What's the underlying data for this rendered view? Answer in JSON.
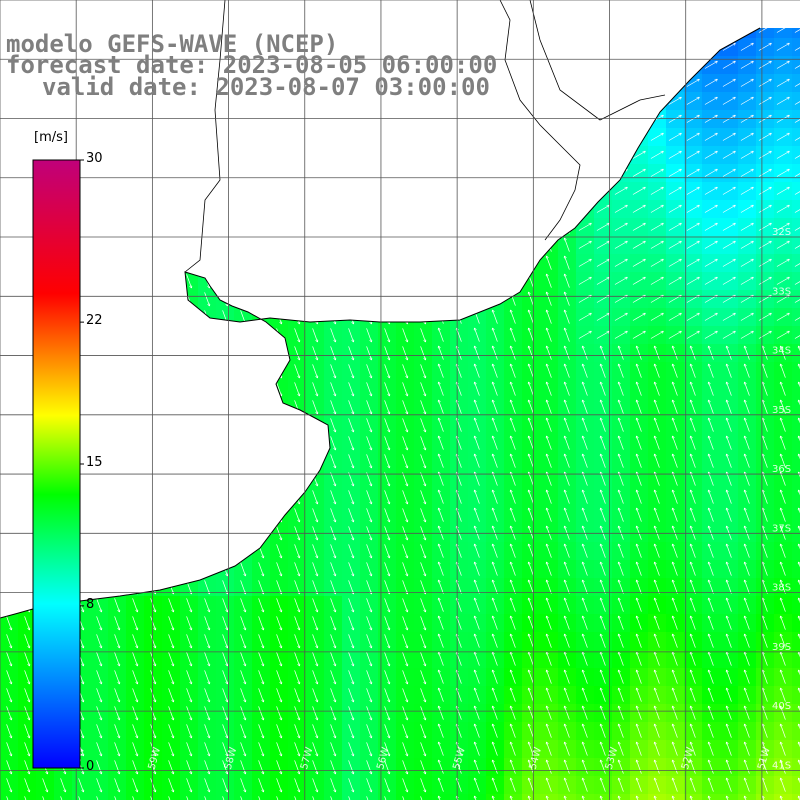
{
  "titles": {
    "model": "modelo GEFS-WAVE (NCEP)",
    "forecast": "forecast date: 2023-08-05 06:00:00",
    "valid": "valid date: 2023-08-07 03:00:00"
  },
  "colorbar": {
    "unit": "[m/s]",
    "min": 0,
    "max": 30,
    "ticks": [
      "30",
      "22",
      "15",
      "8",
      "0"
    ],
    "tick_values": [
      30,
      22,
      15,
      8,
      0
    ],
    "colors": [
      "#0000ff",
      "#00ffff",
      "#00ff00",
      "#ffff00",
      "#ff0000",
      "#c0007a"
    ]
  },
  "map": {
    "lon_range": [
      -61,
      -50.5
    ],
    "lat_range": [
      -41.5,
      -28
    ],
    "land_color": "#ffffff",
    "coast_color": "#000000",
    "grid_color": "#555555",
    "lat_labels": [
      "32S",
      "33S",
      "34S",
      "35S",
      "36S",
      "37S",
      "38S",
      "39S",
      "40S",
      "41S"
    ],
    "lon_labels": [
      "60W",
      "59W",
      "58W",
      "57W",
      "56W",
      "55W",
      "54W",
      "53W",
      "52W",
      "51W"
    ],
    "field_description": "wind speed shaded with white wind direction arrows"
  }
}
